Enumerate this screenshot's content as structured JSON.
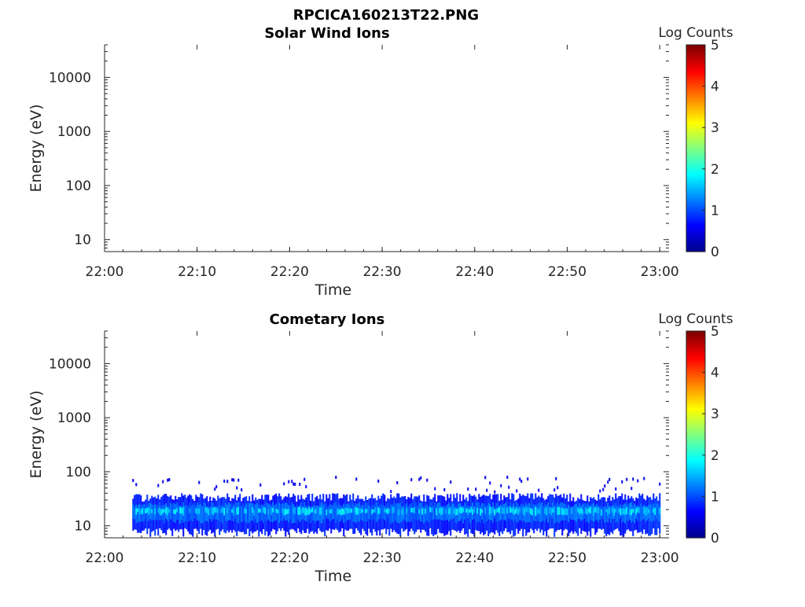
{
  "figure": {
    "title": "RPCICA160213T22.PNG"
  },
  "colormap": [
    "#00008f",
    "#0000ff",
    "#0080ff",
    "#00ffff",
    "#80ff80",
    "#ffff00",
    "#ff8000",
    "#ff0000",
    "#800000"
  ],
  "chart_data": [
    {
      "type": "heatmap",
      "title": "Solar Wind Ions",
      "xlabel": "Time",
      "ylabel": "Energy (eV)",
      "x_ticks": [
        "22:00",
        "22:10",
        "22:20",
        "22:30",
        "22:40",
        "22:50",
        "23:00"
      ],
      "xlim": [
        "22:00",
        "23:01"
      ],
      "y_scale": "log",
      "y_ticks": [
        10,
        100,
        1000,
        10000
      ],
      "y_tick_labels": [
        "10",
        "100",
        "1000",
        "10000"
      ],
      "ylim": [
        6,
        40000
      ],
      "colorbar": {
        "title": "Log Counts",
        "range": [
          0,
          5
        ],
        "ticks": [
          "0",
          "1",
          "2",
          "3",
          "4",
          "5"
        ]
      },
      "data": "empty"
    },
    {
      "type": "heatmap",
      "title": "Cometary Ions",
      "xlabel": "Time",
      "ylabel": "Energy (eV)",
      "x_ticks": [
        "22:00",
        "22:10",
        "22:20",
        "22:30",
        "22:40",
        "22:50",
        "23:00"
      ],
      "xlim": [
        "22:00",
        "23:01"
      ],
      "y_scale": "log",
      "y_ticks": [
        10,
        100,
        1000,
        10000
      ],
      "y_tick_labels": [
        "10",
        "100",
        "1000",
        "10000"
      ],
      "ylim": [
        6,
        40000
      ],
      "colorbar": {
        "title": "Log Counts",
        "range": [
          0,
          5
        ],
        "ticks": [
          "0",
          "1",
          "2",
          "3",
          "4",
          "5"
        ]
      },
      "data_extent": {
        "time_start": "22:03",
        "time_end": "23:00",
        "energy_main_band_eV": [
          8,
          35
        ],
        "energy_core_eV": [
          13,
          25
        ],
        "core_log_counts": 1.8,
        "band_log_counts": 1.0,
        "sparse_up_to_eV": 80
      }
    }
  ]
}
